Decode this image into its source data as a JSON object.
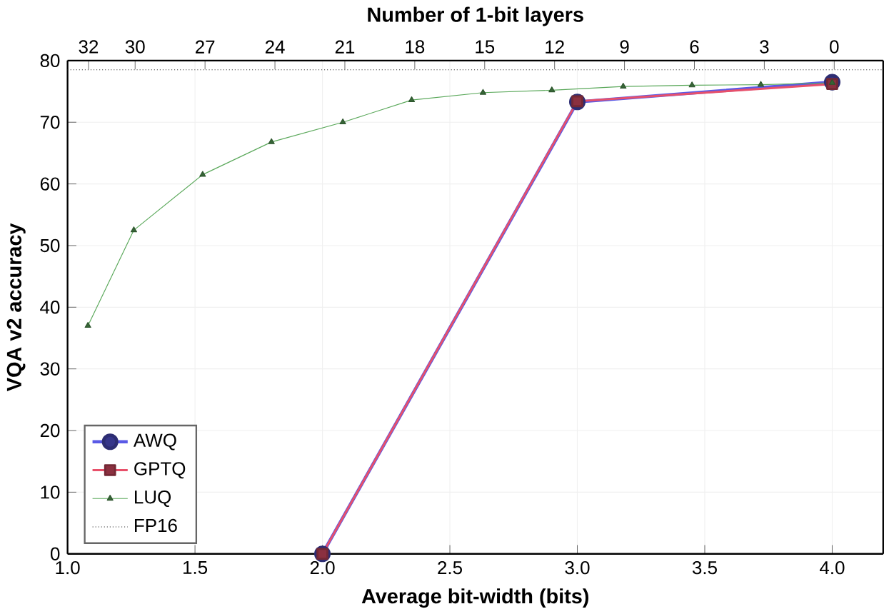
{
  "chart_data": {
    "type": "line",
    "xlabel": "Average bit-width (bits)",
    "ylabel": "VQA v2 accuracy",
    "x2label": "Number of 1-bit layers",
    "xlim": [
      1.0,
      4.2
    ],
    "xticks": [
      {
        "value": 1.0,
        "label": "1.0"
      },
      {
        "value": 1.5,
        "label": "1.5"
      },
      {
        "value": 2.0,
        "label": "2.0"
      },
      {
        "value": 2.5,
        "label": "2.5"
      },
      {
        "value": 3.0,
        "label": "3.0"
      },
      {
        "value": 3.5,
        "label": "3.5"
      },
      {
        "value": 4.0,
        "label": "4.0"
      }
    ],
    "x2lim": [
      32.9,
      -2.1
    ],
    "x2ticks": [
      32,
      30,
      27,
      24,
      21,
      18,
      15,
      12,
      9,
      6,
      3,
      0
    ],
    "ylim": [
      0,
      80
    ],
    "yticks": [
      0,
      10,
      20,
      30,
      40,
      50,
      60,
      70,
      80
    ],
    "grid": true,
    "legend": "bottom left",
    "series": [
      {
        "name": "AWQ",
        "color": "#5a5ae6",
        "marker": "circle",
        "x": [
          2.0,
          3.0,
          4.0
        ],
        "values": [
          0,
          73.3,
          76.5
        ]
      },
      {
        "name": "GPTQ",
        "color": "#e8506a",
        "marker": "square",
        "x": [
          2.0,
          3.0,
          4.0
        ],
        "values": [
          0,
          73.4,
          76.2
        ]
      },
      {
        "name": "LUQ",
        "color": "#5aa85a",
        "marker": "triangle",
        "x": [
          1.08,
          1.26,
          1.53,
          1.8,
          2.08,
          2.35,
          2.63,
          2.9,
          3.18,
          3.45,
          3.72,
          4.0
        ],
        "values": [
          37,
          52.5,
          61.5,
          66.8,
          70,
          73.6,
          74.8,
          75.2,
          75.8,
          76,
          76.1,
          76.4
        ]
      }
    ],
    "ref_lines": [
      {
        "axis": "y",
        "value": 78.5,
        "label": "FP16",
        "color": "#333333",
        "line_style": "dotted"
      }
    ]
  }
}
